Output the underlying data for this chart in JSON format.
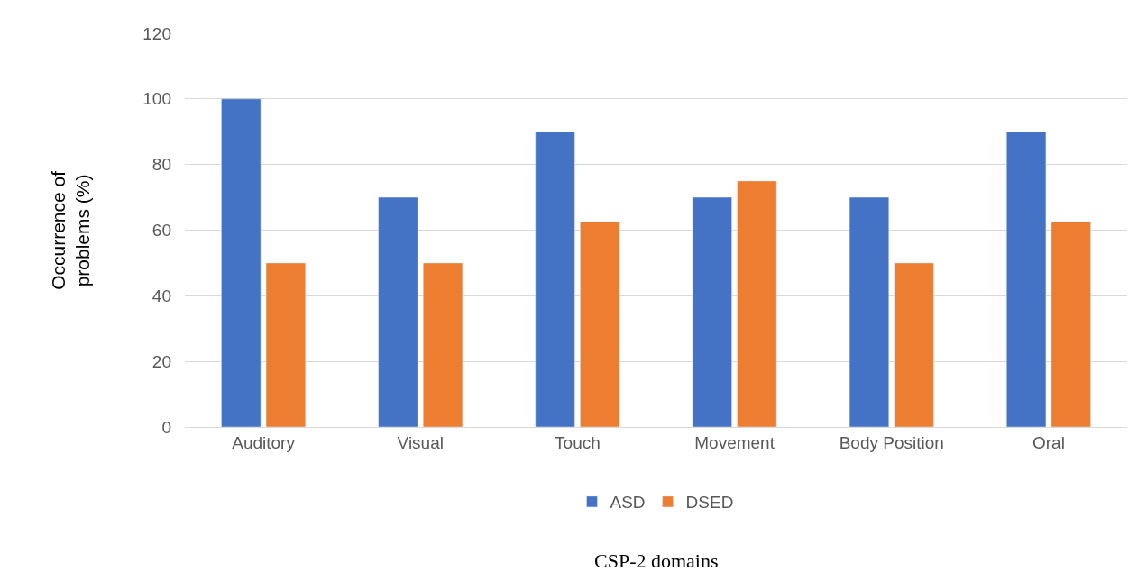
{
  "chart_data": {
    "type": "bar",
    "xlabel": "CSP-2 domains",
    "ylabel": "Occurrence of problems (%)",
    "categories": [
      "Auditory",
      "Visual",
      "Touch",
      "Movement",
      "Body Position",
      "Oral"
    ],
    "series": [
      {
        "name": "ASD",
        "color": "#4472c4",
        "values": [
          100,
          70,
          90,
          70,
          70,
          90
        ]
      },
      {
        "name": "DSED",
        "color": "#ed7d31",
        "values": [
          50,
          50,
          62.5,
          75,
          50,
          62.5
        ]
      }
    ],
    "ylim": [
      0,
      120
    ],
    "yticks": [
      0,
      20,
      40,
      60,
      80,
      100,
      120
    ],
    "grid": "y",
    "legend": "bottom"
  }
}
